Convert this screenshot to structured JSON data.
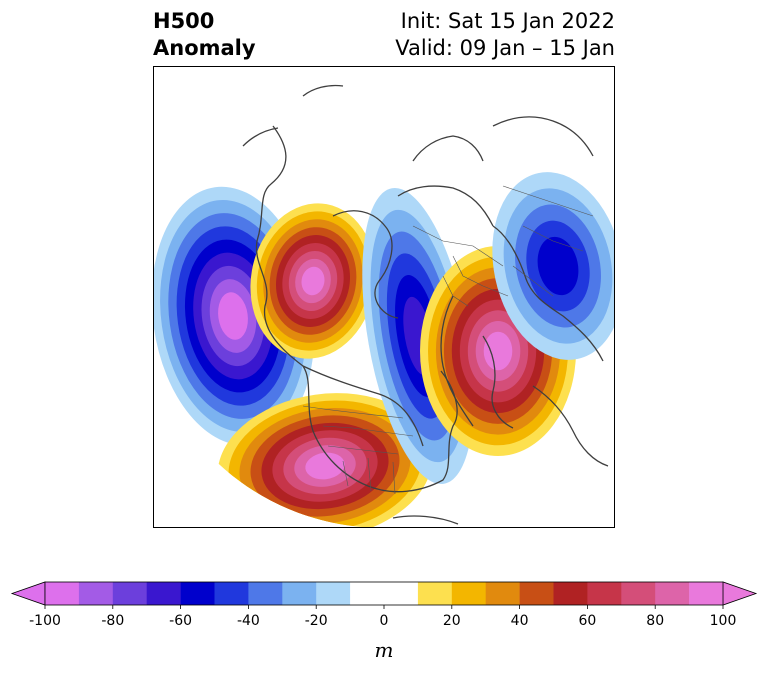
{
  "title": {
    "left_line1": "H500",
    "left_line2": "Anomaly",
    "right_line1": "Init: Sat 15 Jan 2022",
    "right_line2": "Valid: 09 Jan – 15 Jan"
  },
  "map": {
    "projection": "polar-stereographic-north",
    "field": "500 hPa geopotential height anomaly",
    "features": [
      {
        "name": "negative-anomaly-north-pacific",
        "sign": "negative",
        "peak": -100
      },
      {
        "name": "positive-anomaly-alaska",
        "sign": "positive",
        "peak": 100
      },
      {
        "name": "positive-anomaly-western-us",
        "sign": "positive",
        "peak": 100
      },
      {
        "name": "negative-anomaly-eastern-north-america",
        "sign": "negative",
        "peak": -70
      },
      {
        "name": "positive-anomaly-europe-atlantic",
        "sign": "positive",
        "peak": 100
      },
      {
        "name": "negative-anomaly-siberia",
        "sign": "negative",
        "peak": -60
      }
    ]
  },
  "colorbar": {
    "unit": "m",
    "min": -100,
    "max": 100,
    "extend": "both",
    "ticks": [
      "-100",
      "-80",
      "-60",
      "-40",
      "-20",
      "0",
      "20",
      "40",
      "60",
      "80",
      "100"
    ],
    "colors": [
      "#dd70ec",
      "#a35be6",
      "#6c3fdc",
      "#3a17cf",
      "#0000cc",
      "#2038dd",
      "#4e78e8",
      "#7bb2f0",
      "#aed8f8",
      "#ffffff",
      "#ffffff",
      "#fde04f",
      "#f3b600",
      "#e18a0e",
      "#c84f15",
      "#b02223",
      "#c63549",
      "#d44e79",
      "#dd64a9",
      "#e979dc"
    ]
  }
}
